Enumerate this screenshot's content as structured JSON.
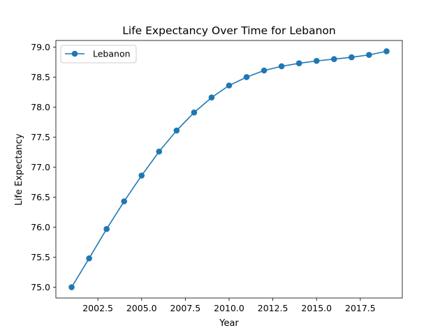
{
  "chart_data": {
    "type": "line",
    "title": "Life Expectancy Over Time for Lebanon",
    "xlabel": "Year",
    "ylabel": "Life Expectancy",
    "xlim": [
      2000.1,
      2019.9
    ],
    "ylim": [
      74.82,
      79.11
    ],
    "xticks": [
      2002.5,
      2005.0,
      2007.5,
      2010.0,
      2012.5,
      2015.0,
      2017.5
    ],
    "xtick_labels": [
      "2002.5",
      "2005.0",
      "2007.5",
      "2010.0",
      "2012.5",
      "2015.0",
      "2017.5"
    ],
    "yticks": [
      75.0,
      75.5,
      76.0,
      76.5,
      77.0,
      77.5,
      78.0,
      78.5,
      79.0
    ],
    "ytick_labels": [
      "75.0",
      "75.5",
      "76.0",
      "76.5",
      "77.0",
      "77.5",
      "78.0",
      "78.5",
      "79.0"
    ],
    "grid": false,
    "legend_position": "top-left",
    "series": [
      {
        "name": "Lebanon",
        "color": "#1f77b4",
        "marker": "circle",
        "x": [
          2001,
          2002,
          2003,
          2004,
          2005,
          2006,
          2007,
          2008,
          2009,
          2010,
          2011,
          2012,
          2013,
          2014,
          2015,
          2016,
          2017,
          2018,
          2019
        ],
        "y": [
          75.0,
          75.48,
          75.97,
          76.43,
          76.86,
          77.26,
          77.61,
          77.91,
          78.16,
          78.36,
          78.5,
          78.61,
          78.68,
          78.73,
          78.77,
          78.8,
          78.83,
          78.87,
          78.93
        ]
      }
    ]
  }
}
